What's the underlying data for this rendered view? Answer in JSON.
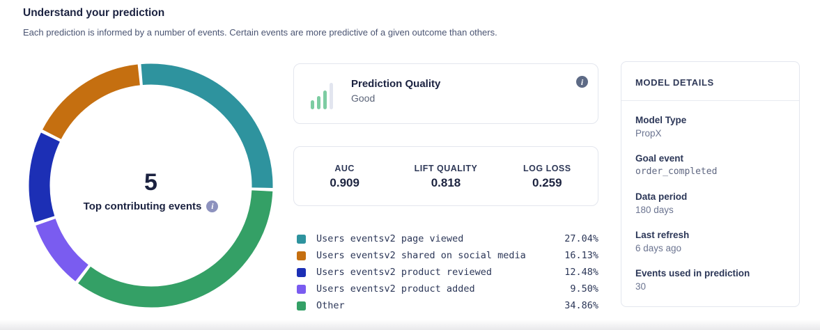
{
  "header": {
    "title": "Understand your prediction",
    "subtitle": "Each prediction is informed by a number of events. Certain events are more predictive of a given outcome than others."
  },
  "donut_center": {
    "count": "5",
    "label": "Top contributing events"
  },
  "prediction_quality": {
    "title": "Prediction Quality",
    "value": "Good",
    "icon": "bar-chart-icon",
    "icon_colors": {
      "active": "#7dcca2",
      "inactive": "#e2e5ef"
    }
  },
  "metrics": {
    "items": [
      {
        "label": "AUC",
        "value": "0.909"
      },
      {
        "label": "LIFT QUALITY",
        "value": "0.818"
      },
      {
        "label": "LOG LOSS",
        "value": "0.259"
      }
    ]
  },
  "details": {
    "header": "MODEL DETAILS",
    "fields": [
      {
        "label": "Model Type",
        "value": "PropX"
      },
      {
        "label": "Goal event",
        "value": "order_completed"
      },
      {
        "label": "Data period",
        "value": "180 days"
      },
      {
        "label": "Last refresh",
        "value": "6 days ago"
      },
      {
        "label": "Events used in prediction",
        "value": "30"
      }
    ]
  },
  "icons": {
    "info": "i"
  },
  "chart_data": {
    "type": "pie",
    "subtype": "donut",
    "title": "Top contributing events",
    "center_value": 5,
    "segments": [
      {
        "label": "Users eventsv2 page viewed",
        "value": 27.04,
        "pct": "27.04%",
        "color": "#2E939E"
      },
      {
        "label": "Users eventsv2 shared on social media",
        "value": 16.13,
        "pct": "16.13%",
        "color": "#C56F10"
      },
      {
        "label": "Users eventsv2 product reviewed",
        "value": 12.48,
        "pct": "12.48%",
        "color": "#1C2FB5"
      },
      {
        "label": "Users eventsv2 product added",
        "value": 9.5,
        "pct": "9.50%",
        "color": "#7A5CF0"
      },
      {
        "label": "Other",
        "value": 34.86,
        "pct": "34.86%",
        "color": "#34A066"
      }
    ],
    "draw_order": [
      0,
      4,
      3,
      2,
      1
    ],
    "start_angle_deg": -5.4,
    "gap_deg": 1.6,
    "outer_radius": 175,
    "ring_width": 30,
    "legend_position": "right-bottom"
  }
}
